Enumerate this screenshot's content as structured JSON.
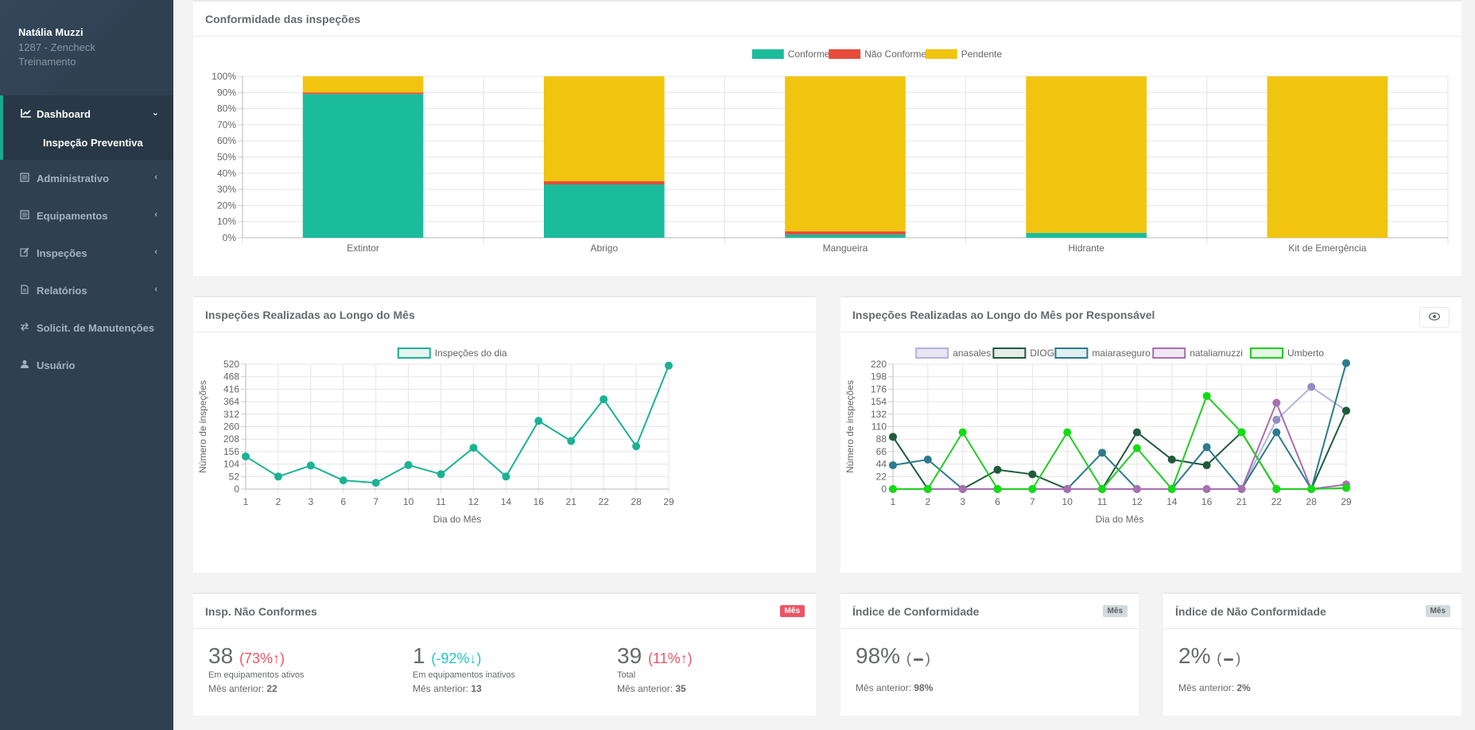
{
  "sidebar": {
    "user_name": "Natália Muzzi",
    "user_org": "1287 - Zencheck Treinamento",
    "active_item": {
      "label": "Dashboard",
      "icon": "line-chart-icon"
    },
    "active_sub": "Inspeção Preventiva",
    "items": [
      {
        "label": "Administrativo",
        "icon": "list-icon",
        "chevron": true
      },
      {
        "label": "Equipamentos",
        "icon": "list-icon",
        "chevron": true
      },
      {
        "label": "Inspeções",
        "icon": "edit-icon",
        "chevron": true
      },
      {
        "label": "Relatórios",
        "icon": "file-icon",
        "chevron": true
      },
      {
        "label": "Solicit. de Manutenções",
        "icon": "exchange-icon",
        "chevron": false
      },
      {
        "label": "Usuário",
        "icon": "user-icon",
        "chevron": false
      }
    ]
  },
  "panels": {
    "conformity_title": "Conformidade das inspeções",
    "monthly_title": "Inspeções Realizadas ao Longo do Mês",
    "responsible_title": "Inspeções Realizadas ao Longo do Mês por Responsável",
    "nonconform_title": "Insp. Não Conformes",
    "conf_index_title": "Índice de Conformidade",
    "nonconf_index_title": "Índice de Não Conformidade",
    "badge_month": "Mês"
  },
  "stats": {
    "nonconform": [
      {
        "value": "38",
        "pct": "(73%",
        "dir": "up",
        "label": "Em equipamentos ativos",
        "prev_label": "Mês anterior:",
        "prev_value": "22"
      },
      {
        "value": "1",
        "pct": "(-92%",
        "dir": "down",
        "label": "Em equipamentos inativos",
        "prev_label": "Mês anterior:",
        "prev_value": "13"
      },
      {
        "value": "39",
        "pct": "(11%",
        "dir": "up",
        "label": "Total",
        "prev_label": "Mês anterior:",
        "prev_value": "35"
      }
    ],
    "conf_index": {
      "value": "98%",
      "prev_label": "Mês anterior:",
      "prev_value": "98%"
    },
    "nonconf_index": {
      "value": "2%",
      "prev_label": "Mês anterior:",
      "prev_value": "2%"
    }
  },
  "colors": {
    "teal": "#1abc9c",
    "red": "#e74c3c",
    "yellow": "#f1c40f"
  },
  "chart_data": [
    {
      "type": "bar",
      "stacked": true,
      "categories": [
        "Extintor",
        "Abrigo",
        "Mangueira",
        "Hidrante",
        "Kit de Emergência"
      ],
      "series": [
        {
          "name": "Conforme",
          "color": "#1abc9c",
          "values": [
            89,
            33,
            2,
            3,
            0
          ]
        },
        {
          "name": "Não Conforme",
          "color": "#e74c3c",
          "values": [
            1,
            2,
            2,
            0,
            0
          ]
        },
        {
          "name": "Pendente",
          "color": "#f1c40f",
          "values": [
            10,
            65,
            96,
            97,
            100
          ]
        }
      ],
      "ylim": [
        0,
        100
      ],
      "yticks": [
        "0%",
        "10%",
        "20%",
        "30%",
        "40%",
        "50%",
        "60%",
        "70%",
        "80%",
        "90%",
        "100%"
      ],
      "legend": "top"
    },
    {
      "type": "line",
      "x": [
        "1",
        "2",
        "3",
        "6",
        "7",
        "10",
        "11",
        "12",
        "14",
        "16",
        "21",
        "22",
        "28",
        "29"
      ],
      "series": [
        {
          "name": "Inspeções do dia",
          "color": "#1ab394",
          "values": [
            136,
            52,
            98,
            36,
            26,
            100,
            62,
            172,
            52,
            284,
            200,
            374,
            178,
            514
          ]
        }
      ],
      "ylim": [
        0,
        520
      ],
      "yticks": [
        "0",
        "52",
        "104",
        "156",
        "208",
        "260",
        "312",
        "364",
        "416",
        "468",
        "520"
      ],
      "xlabel": "Dia do Mês",
      "ylabel": "Número de inspeções",
      "legend": "top"
    },
    {
      "type": "line",
      "x": [
        "1",
        "2",
        "3",
        "6",
        "7",
        "10",
        "11",
        "12",
        "14",
        "16",
        "21",
        "22",
        "28",
        "29"
      ],
      "series": [
        {
          "name": "anasales",
          "color": "#b3b3dd",
          "point": "#8e8ec0",
          "fill": "#e6e6f2",
          "values": [
            0,
            0,
            0,
            0,
            0,
            0,
            0,
            0,
            0,
            0,
            0,
            122,
            180,
            138
          ]
        },
        {
          "name": "DIOGO",
          "color": "#205a3c",
          "point": "#205a3c",
          "fill": "#e4ece8",
          "values": [
            92,
            0,
            0,
            34,
            26,
            0,
            0,
            100,
            52,
            42,
            100,
            0,
            0,
            138
          ]
        },
        {
          "name": "maiaraseguro",
          "color": "#2c7a8c",
          "point": "#2c7a8c",
          "fill": "#e2eef1",
          "values": [
            42,
            52,
            0,
            0,
            0,
            0,
            64,
            0,
            0,
            74,
            0,
            100,
            0,
            222
          ]
        },
        {
          "name": "nataliamuzzi",
          "color": "#a86fb0",
          "point": "#a86fb0",
          "fill": "#f2e8f3",
          "values": [
            0,
            0,
            0,
            0,
            0,
            0,
            0,
            0,
            0,
            0,
            0,
            152,
            0,
            8
          ]
        },
        {
          "name": "Umberto",
          "color": "#22cc22",
          "point": "#11dd11",
          "fill": "#e4f7e4",
          "values": [
            0,
            0,
            100,
            0,
            0,
            100,
            0,
            72,
            0,
            164,
            100,
            0,
            0,
            2
          ]
        }
      ],
      "ylim": [
        0,
        220
      ],
      "yticks": [
        "0",
        "22",
        "44",
        "66",
        "88",
        "110",
        "132",
        "154",
        "176",
        "198",
        "220"
      ],
      "xlabel": "Dia do Mês",
      "ylabel": "Número de inspeções",
      "legend": "top"
    }
  ]
}
